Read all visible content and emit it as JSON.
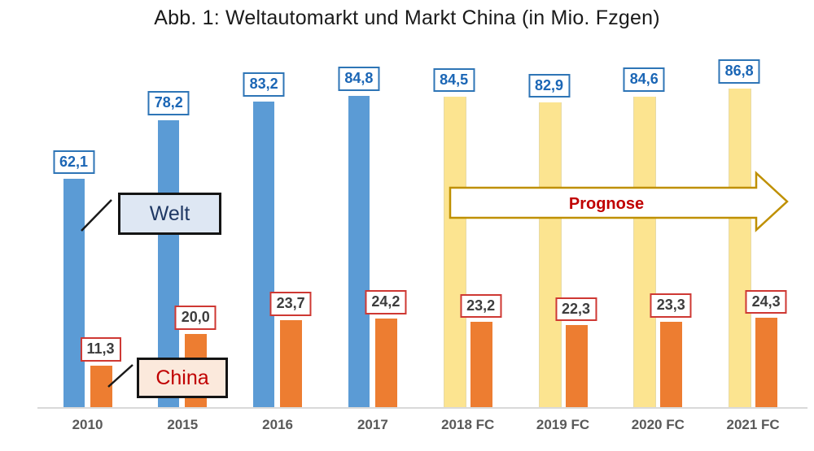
{
  "title": "Abb. 1: Weltautomarkt und Markt China (in Mio. Fzgen)",
  "legend": {
    "welt_label": "Welt",
    "china_label": "China"
  },
  "prognose_label": "Prognose",
  "colors": {
    "welt_actual_bar": "#5B9BD5",
    "welt_forecast_bar": "#FCE490",
    "china_bar": "#ED7D31",
    "welt_value_border": "#2E75B6",
    "welt_value_text": "#1B66B5",
    "china_value_border": "#CE3833",
    "china_value_text": "#3d3d3d",
    "prognose_text": "#C00000",
    "prognose_arrow_border": "#BF9000",
    "axis_label_text": "#595959",
    "axis_line": "#d9d9d9"
  },
  "chart_data": {
    "type": "bar",
    "title": "Abb. 1: Weltautomarkt und Markt China (in Mio. Fzgen)",
    "unit": "Mio. Fzgen",
    "xlabel": "",
    "ylabel": "",
    "grid": false,
    "legend_position": "inline-callout-boxes",
    "categories": [
      "2010",
      "2015",
      "2016",
      "2017",
      "2018 FC",
      "2019 FC",
      "2020 FC",
      "2021 FC"
    ],
    "forecast_start_index": 4,
    "series": [
      {
        "name": "Welt",
        "values": [
          62.1,
          78.2,
          83.2,
          84.8,
          84.5,
          82.9,
          84.6,
          86.8
        ],
        "labels": [
          "62,1",
          "78,2",
          "83,2",
          "84,8",
          "84,5",
          "82,9",
          "84,6",
          "86,8"
        ]
      },
      {
        "name": "China",
        "values": [
          11.3,
          20.0,
          23.7,
          24.2,
          23.2,
          22.3,
          23.3,
          24.3
        ],
        "labels": [
          "11,3",
          "20,0",
          "23,7",
          "24,2",
          "23,2",
          "22,3",
          "23,3",
          "24,3"
        ]
      }
    ],
    "annotation": "Prognose arrow spans forecast years 2018 FC - 2021 FC"
  }
}
